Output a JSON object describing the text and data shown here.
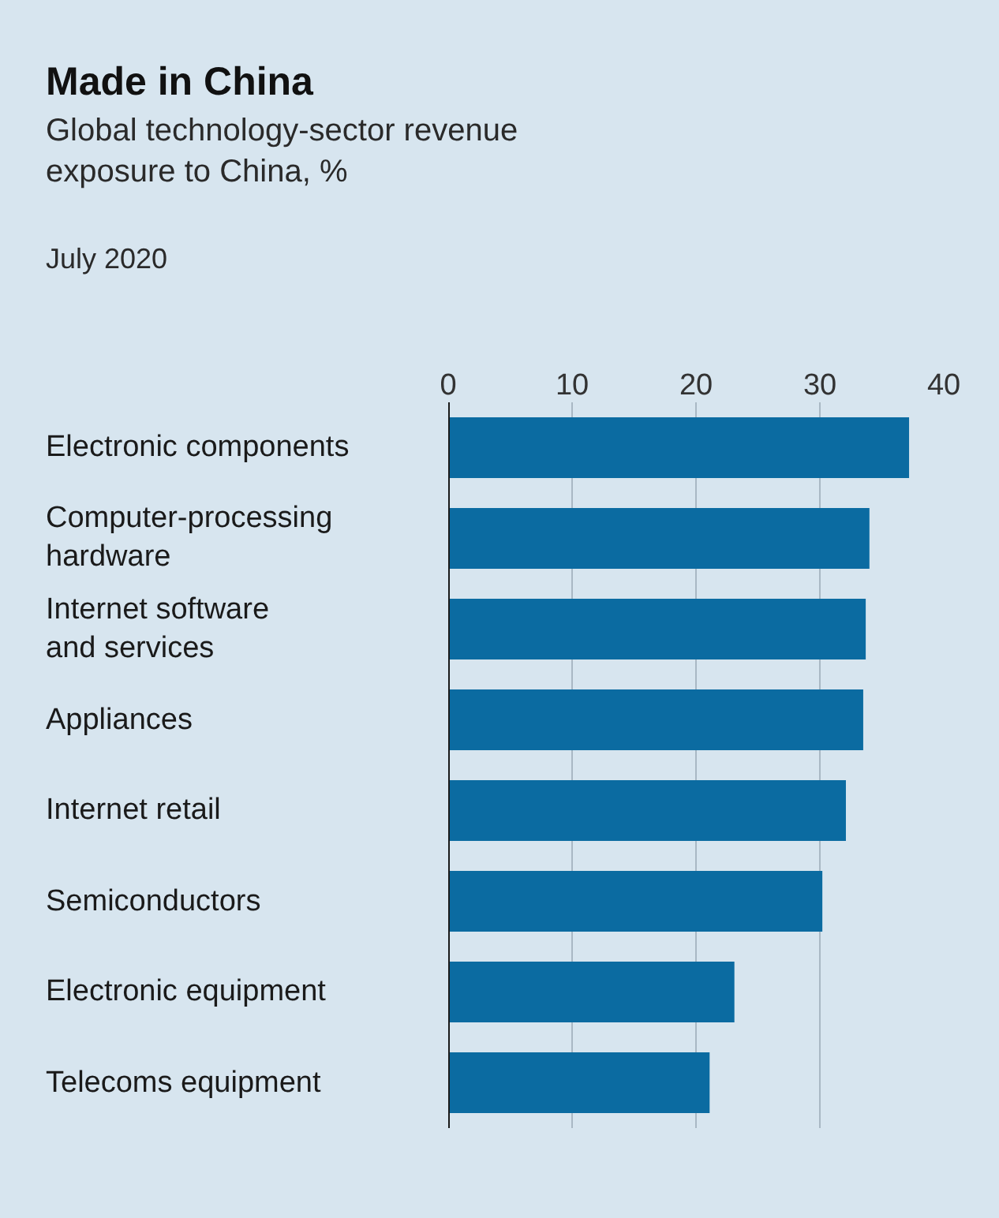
{
  "chart_data": {
    "type": "bar",
    "orientation": "horizontal",
    "title": "Made in China",
    "subtitle": "Global technology-sector revenue\nexposure to China, %",
    "annotations": [
      "July 2020"
    ],
    "categories": [
      "Electronic components",
      "Computer-processing\nhardware",
      "Internet software\nand services",
      "Appliances",
      "Internet retail",
      "Semiconductors",
      "Electronic equipment",
      "Telecoms equipment"
    ],
    "values": [
      37.2,
      34.0,
      33.7,
      33.5,
      32.1,
      30.2,
      23.1,
      21.1
    ],
    "color": "#0b6ba1",
    "xlim": [
      0,
      40
    ],
    "xticks": [
      0,
      10,
      20,
      30,
      40
    ],
    "grid": "x"
  }
}
